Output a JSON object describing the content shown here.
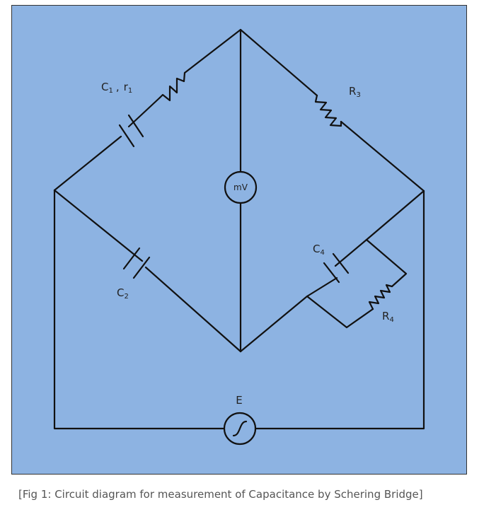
{
  "labels": {
    "c1": "C",
    "c1_sub": "1",
    "sep": ",",
    "r1": "r",
    "r1_sub": "1",
    "r3": "R",
    "r3_sub": "3",
    "c2": "C",
    "c2_sub": "2",
    "c4": "C",
    "c4_sub": "4",
    "r4": "R",
    "r4_sub": "4",
    "meter": "mV",
    "source": "E"
  },
  "caption": "[Fig 1: Circuit diagram for measurement of Capacitance by Schering Bridge]",
  "colors": {
    "background": "#8db3e2",
    "border": "#333333",
    "wire": "#111111"
  }
}
